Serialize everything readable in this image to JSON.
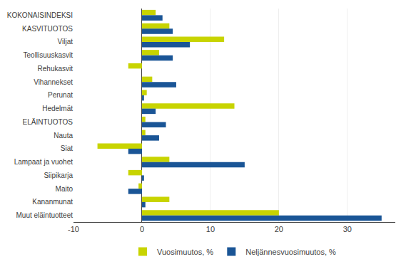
{
  "chart_data": {
    "type": "bar",
    "orientation": "horizontal",
    "categories": [
      "KOKONAISINDEKSI",
      "KASVITUOTOS",
      "Viljat",
      "Teollisuuskasvit",
      "Rehukasvit",
      "Vihannekset",
      "Perunat",
      "Hedelmät",
      "ELÄINTUOTOS",
      "Nauta",
      "Siat",
      "Lampaat ja vuohet",
      "Siipikarja",
      "Maito",
      "Kananmunat",
      "Muut eläintuotteet"
    ],
    "series": [
      {
        "name": "Vuosimuutos, %",
        "color": "#c8d400",
        "values": [
          2.0,
          4.0,
          12.0,
          2.5,
          -2.0,
          1.5,
          0.7,
          13.5,
          0.5,
          0.5,
          -6.5,
          4.0,
          -2.0,
          -0.5,
          4.0,
          20.0
        ]
      },
      {
        "name": "Neljännesvuosimuutos, %",
        "color": "#1a5596",
        "values": [
          3.0,
          4.5,
          7.0,
          4.5,
          0.0,
          5.0,
          0.3,
          2.0,
          3.5,
          2.5,
          -2.0,
          15.0,
          0.3,
          -2.0,
          0.5,
          35.0
        ]
      }
    ],
    "xlim": [
      -10,
      37
    ],
    "xticks": [
      -10,
      0,
      10,
      20,
      30
    ],
    "grid": true,
    "legend": "bottom"
  }
}
